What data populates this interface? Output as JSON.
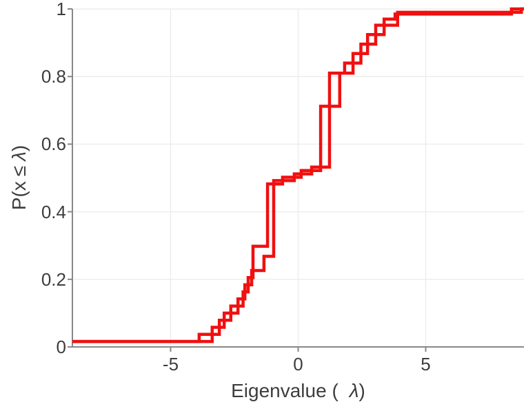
{
  "figure": {
    "background": "#ffffff"
  },
  "chart_data": {
    "type": "step",
    "subtype": "empirical-cdf",
    "title": "",
    "xlabel": "Eigenvalue ( λ)",
    "xlabel_prefix": "Eigenvalue (",
    "xlabel_symbol": "λ",
    "xlabel_suffix": ")",
    "ylabel": "P(x ≤ λ)",
    "ylabel_prefix": "P(x",
    "ylabel_leq": "≤",
    "ylabel_symbol": "λ",
    "ylabel_suffix": ")",
    "xlim": [
      -8.85,
      8.85
    ],
    "ylim": [
      0,
      1
    ],
    "xticks": [
      -5,
      0,
      5
    ],
    "xtick_labels": [
      "-5",
      "0",
      "5"
    ],
    "yticks": [
      0,
      0.2,
      0.4,
      0.6,
      0.8,
      1
    ],
    "ytick_labels": [
      "0",
      "0.2",
      "0.4",
      "0.6",
      "0.8",
      "1"
    ],
    "grid": true,
    "legend": "none",
    "colors": {
      "line": "#f01010",
      "axis": "#878787",
      "grid": "#ebebeb",
      "labels": "#3d3d3d"
    },
    "line_width": 4.5,
    "series": [
      {
        "name": "ecdf-curve-1",
        "start_p": 0.016,
        "steps": [
          [
            -3.88,
            0.037
          ],
          [
            -3.09,
            0.079
          ],
          [
            -2.64,
            0.121
          ],
          [
            -2.16,
            0.163
          ],
          [
            -1.96,
            0.205
          ],
          [
            -1.77,
            0.298
          ],
          [
            -1.2,
            0.482
          ],
          [
            -0.61,
            0.502
          ],
          [
            0.12,
            0.522
          ],
          [
            0.88,
            0.712
          ],
          [
            1.63,
            0.81
          ],
          [
            2.15,
            0.868
          ],
          [
            2.72,
            0.924
          ],
          [
            3.37,
            0.97
          ],
          [
            3.8,
            0.985
          ],
          [
            8.36,
            1.0
          ]
        ]
      },
      {
        "name": "ecdf-curve-2",
        "start_p": 0.016,
        "steps": [
          [
            -3.37,
            0.058
          ],
          [
            -2.9,
            0.1
          ],
          [
            -2.36,
            0.142
          ],
          [
            -2.09,
            0.184
          ],
          [
            -1.82,
            0.226
          ],
          [
            -1.34,
            0.268
          ],
          [
            -0.96,
            0.492
          ],
          [
            -0.15,
            0.512
          ],
          [
            0.53,
            0.532
          ],
          [
            1.23,
            0.81
          ],
          [
            1.82,
            0.84
          ],
          [
            2.46,
            0.896
          ],
          [
            3.04,
            0.952
          ],
          [
            3.9,
            0.99
          ],
          [
            8.75,
            1.0
          ]
        ]
      }
    ]
  }
}
